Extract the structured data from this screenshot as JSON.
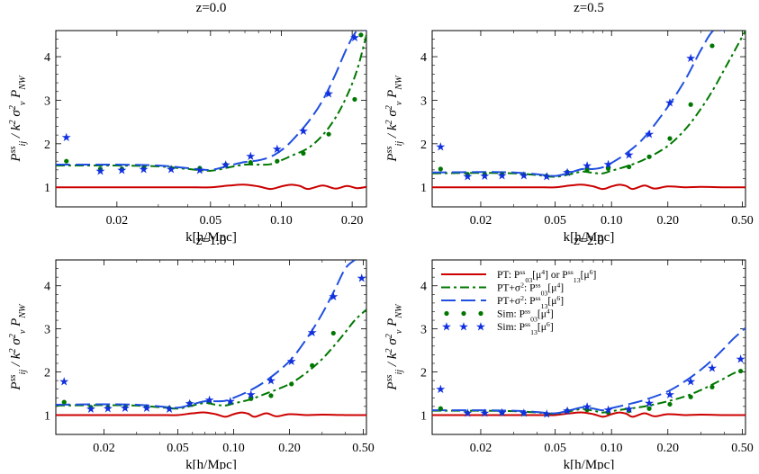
{
  "chart_data": [
    {
      "type": "line",
      "title": "z=0.0",
      "xlabel": "k[h/Mpc]",
      "ylabel": "P^ss_ij / k^2 σ^2_v P_NW",
      "xscale": "log",
      "xlim": [
        0.011,
        0.23
      ],
      "ylim": [
        0.55,
        4.6
      ],
      "xticks": [
        0.02,
        0.05,
        0.1,
        0.2
      ],
      "xtick_labels": [
        "0.02",
        "0.05",
        "0.10",
        "0.20"
      ],
      "yticks": [
        1,
        2,
        3,
        4
      ],
      "ytick_labels": [
        "1",
        "2",
        "3",
        "4"
      ],
      "series": [
        {
          "style": "pt",
          "x": [
            0.011,
            0.02,
            0.03,
            0.04,
            0.05,
            0.06,
            0.07,
            0.08,
            0.09,
            0.1,
            0.11,
            0.12,
            0.13,
            0.15,
            0.17,
            0.19,
            0.21,
            0.23
          ],
          "y": [
            1.0,
            1.0,
            1.0,
            1.0,
            1.0,
            1.04,
            1.06,
            1.02,
            0.96,
            1.02,
            1.06,
            1.03,
            0.96,
            1.04,
            0.97,
            1.03,
            0.98,
            1.01
          ]
        },
        {
          "style": "pt_sigma_03",
          "x": [
            0.011,
            0.02,
            0.03,
            0.04,
            0.05,
            0.06,
            0.07,
            0.08,
            0.09,
            0.1,
            0.11,
            0.13,
            0.15,
            0.17,
            0.19,
            0.21,
            0.23
          ],
          "y": [
            1.5,
            1.5,
            1.48,
            1.42,
            1.38,
            1.46,
            1.52,
            1.52,
            1.53,
            1.62,
            1.72,
            1.9,
            2.2,
            2.6,
            3.1,
            3.7,
            4.5
          ]
        },
        {
          "style": "pt_sigma_13",
          "x": [
            0.011,
            0.02,
            0.03,
            0.04,
            0.05,
            0.06,
            0.07,
            0.08,
            0.09,
            0.1,
            0.11,
            0.13,
            0.15,
            0.17,
            0.19,
            0.21,
            0.23
          ],
          "y": [
            1.52,
            1.52,
            1.5,
            1.44,
            1.4,
            1.5,
            1.58,
            1.62,
            1.7,
            1.85,
            2.05,
            2.5,
            3.0,
            3.6,
            4.2,
            4.6,
            4.6
          ]
        },
        {
          "style": "sim_03",
          "x": [
            0.0122,
            0.017,
            0.021,
            0.026,
            0.034,
            0.045,
            0.058,
            0.074,
            0.096,
            0.124,
            0.159,
            0.205,
            0.218
          ],
          "y": [
            1.6,
            1.42,
            1.42,
            1.45,
            1.44,
            1.44,
            1.52,
            1.57,
            1.6,
            1.78,
            2.22,
            3.02,
            4.5
          ]
        },
        {
          "style": "sim_13",
          "x": [
            0.0122,
            0.017,
            0.021,
            0.026,
            0.034,
            0.045,
            0.058,
            0.074,
            0.096,
            0.124,
            0.159,
            0.205
          ],
          "y": [
            2.15,
            1.38,
            1.4,
            1.42,
            1.42,
            1.4,
            1.52,
            1.72,
            1.88,
            2.3,
            3.15,
            4.45
          ]
        }
      ]
    },
    {
      "type": "line",
      "title": "z=0.5",
      "xlabel": "k[h/Mpc]",
      "ylabel": "P^ss_ij / k^2 σ^2_v P_NW",
      "xscale": "log",
      "xlim": [
        0.011,
        0.52
      ],
      "ylim": [
        0.55,
        4.6
      ],
      "xticks": [
        0.02,
        0.05,
        0.1,
        0.2,
        0.5
      ],
      "xtick_labels": [
        "0.02",
        "0.05",
        "0.10",
        "0.20",
        "0.50"
      ],
      "yticks": [
        1,
        2,
        3,
        4
      ],
      "ytick_labels": [
        "1",
        "2",
        "3",
        "4"
      ],
      "series": [
        {
          "style": "pt",
          "x": [
            0.011,
            0.02,
            0.03,
            0.04,
            0.05,
            0.06,
            0.07,
            0.08,
            0.09,
            0.1,
            0.11,
            0.12,
            0.13,
            0.15,
            0.17,
            0.2,
            0.25,
            0.3,
            0.4,
            0.52
          ],
          "y": [
            1.0,
            1.0,
            1.0,
            1.0,
            1.0,
            1.04,
            1.06,
            1.02,
            0.96,
            1.02,
            1.06,
            1.03,
            0.96,
            1.04,
            0.97,
            1.02,
            1.0,
            1.01,
            1.0,
            1.0
          ]
        },
        {
          "style": "pt_sigma_03",
          "x": [
            0.011,
            0.02,
            0.03,
            0.04,
            0.05,
            0.06,
            0.07,
            0.08,
            0.09,
            0.1,
            0.12,
            0.15,
            0.2,
            0.25,
            0.3,
            0.35,
            0.4,
            0.45,
            0.52
          ],
          "y": [
            1.32,
            1.33,
            1.32,
            1.28,
            1.24,
            1.3,
            1.36,
            1.33,
            1.32,
            1.38,
            1.48,
            1.64,
            1.95,
            2.35,
            2.8,
            3.25,
            3.7,
            4.1,
            4.6
          ]
        },
        {
          "style": "pt_sigma_13",
          "x": [
            0.011,
            0.02,
            0.03,
            0.04,
            0.05,
            0.06,
            0.07,
            0.08,
            0.09,
            0.1,
            0.12,
            0.15,
            0.2,
            0.25,
            0.3,
            0.35,
            0.4
          ],
          "y": [
            1.34,
            1.35,
            1.34,
            1.3,
            1.26,
            1.34,
            1.42,
            1.42,
            1.46,
            1.56,
            1.78,
            2.15,
            2.85,
            3.5,
            4.15,
            4.6,
            4.6
          ]
        },
        {
          "style": "sim_03",
          "x": [
            0.0122,
            0.017,
            0.021,
            0.026,
            0.034,
            0.045,
            0.058,
            0.074,
            0.096,
            0.124,
            0.159,
            0.205,
            0.265,
            0.345
          ],
          "y": [
            1.42,
            1.3,
            1.3,
            1.3,
            1.28,
            1.26,
            1.35,
            1.4,
            1.43,
            1.47,
            1.7,
            2.12,
            2.9,
            4.25
          ]
        },
        {
          "style": "sim_13",
          "x": [
            0.0122,
            0.017,
            0.021,
            0.026,
            0.034,
            0.045,
            0.058,
            0.074,
            0.096,
            0.124,
            0.159,
            0.205,
            0.265
          ],
          "y": [
            1.93,
            1.25,
            1.26,
            1.27,
            1.27,
            1.25,
            1.35,
            1.5,
            1.53,
            1.75,
            2.22,
            2.95,
            3.97
          ]
        }
      ]
    },
    {
      "type": "line",
      "title": "z=1.0",
      "xlabel": "k[h/Mpc]",
      "ylabel": "P^ss_ij / k^2 σ^2_v P_NW",
      "xscale": "log",
      "xlim": [
        0.011,
        0.52
      ],
      "ylim": [
        0.55,
        4.6
      ],
      "xticks": [
        0.02,
        0.05,
        0.1,
        0.2,
        0.5
      ],
      "xtick_labels": [
        "0.02",
        "0.05",
        "0.10",
        "0.20",
        "0.50"
      ],
      "yticks": [
        1,
        2,
        3,
        4
      ],
      "ytick_labels": [
        "1",
        "2",
        "3",
        "4"
      ],
      "series": [
        {
          "style": "pt",
          "x": [
            0.011,
            0.02,
            0.03,
            0.04,
            0.05,
            0.06,
            0.07,
            0.08,
            0.09,
            0.1,
            0.11,
            0.12,
            0.13,
            0.15,
            0.17,
            0.2,
            0.25,
            0.3,
            0.4,
            0.52
          ],
          "y": [
            1.0,
            1.0,
            1.0,
            1.0,
            1.0,
            1.04,
            1.06,
            1.02,
            0.96,
            1.02,
            1.06,
            1.03,
            0.96,
            1.04,
            0.97,
            1.02,
            1.0,
            1.01,
            1.0,
            1.0
          ]
        },
        {
          "style": "pt_sigma_03",
          "x": [
            0.011,
            0.02,
            0.03,
            0.04,
            0.05,
            0.06,
            0.07,
            0.08,
            0.09,
            0.1,
            0.12,
            0.15,
            0.2,
            0.25,
            0.3,
            0.35,
            0.4,
            0.45,
            0.52
          ],
          "y": [
            1.22,
            1.23,
            1.22,
            1.18,
            1.15,
            1.22,
            1.28,
            1.24,
            1.22,
            1.27,
            1.35,
            1.5,
            1.72,
            2.0,
            2.3,
            2.62,
            2.92,
            3.2,
            3.45
          ]
        },
        {
          "style": "pt_sigma_13",
          "x": [
            0.011,
            0.02,
            0.03,
            0.04,
            0.05,
            0.06,
            0.07,
            0.08,
            0.09,
            0.1,
            0.12,
            0.15,
            0.2,
            0.25,
            0.3,
            0.35,
            0.4,
            0.45
          ],
          "y": [
            1.24,
            1.25,
            1.24,
            1.2,
            1.17,
            1.25,
            1.32,
            1.32,
            1.33,
            1.4,
            1.55,
            1.8,
            2.25,
            2.8,
            3.35,
            3.9,
            4.4,
            4.6
          ]
        },
        {
          "style": "sim_03",
          "x": [
            0.0122,
            0.017,
            0.021,
            0.026,
            0.034,
            0.045,
            0.058,
            0.074,
            0.096,
            0.124,
            0.159,
            0.205,
            0.265,
            0.345
          ],
          "y": [
            1.3,
            1.18,
            1.18,
            1.18,
            1.17,
            1.16,
            1.27,
            1.3,
            1.28,
            1.38,
            1.45,
            1.72,
            2.15,
            2.9
          ]
        },
        {
          "style": "sim_13",
          "x": [
            0.0122,
            0.017,
            0.021,
            0.026,
            0.034,
            0.045,
            0.058,
            0.074,
            0.096,
            0.124,
            0.159,
            0.205,
            0.265,
            0.345,
            0.49
          ],
          "y": [
            1.78,
            1.15,
            1.16,
            1.17,
            1.17,
            1.15,
            1.27,
            1.35,
            1.32,
            1.48,
            1.8,
            2.25,
            2.92,
            3.75,
            4.18
          ]
        }
      ]
    },
    {
      "type": "line",
      "title": "z=2.0",
      "xlabel": "k[h/Mpc]",
      "ylabel": "P^ss_ij / k^2 σ^2_v P_NW",
      "xscale": "log",
      "xlim": [
        0.011,
        0.52
      ],
      "ylim": [
        0.55,
        4.6
      ],
      "xticks": [
        0.02,
        0.05,
        0.1,
        0.2,
        0.5
      ],
      "xtick_labels": [
        "0.02",
        "0.05",
        "0.10",
        "0.20",
        "0.50"
      ],
      "yticks": [
        1,
        2,
        3,
        4
      ],
      "ytick_labels": [
        "1",
        "2",
        "3",
        "4"
      ],
      "legend": {
        "placement": "top-right",
        "entries": [
          {
            "style": "pt",
            "label": "PT: P^ss_03[μ^4] or P^ss_13[μ^6]"
          },
          {
            "style": "pt_sigma_03",
            "label": "PT+σ^2: P^ss_03[μ^4]"
          },
          {
            "style": "pt_sigma_13",
            "label": "PT+σ^2: P^ss_13[μ^6]"
          },
          {
            "style": "sim_03",
            "label": "Sim: P^ss_03[μ^4]"
          },
          {
            "style": "sim_13",
            "label": "Sim: P^ss_13[μ^6]"
          }
        ]
      },
      "series": [
        {
          "style": "pt",
          "x": [
            0.011,
            0.02,
            0.03,
            0.04,
            0.05,
            0.06,
            0.07,
            0.08,
            0.09,
            0.1,
            0.11,
            0.12,
            0.13,
            0.15,
            0.17,
            0.2,
            0.25,
            0.3,
            0.4,
            0.52
          ],
          "y": [
            1.0,
            1.0,
            1.0,
            1.0,
            1.0,
            1.04,
            1.06,
            1.02,
            0.96,
            1.02,
            1.06,
            1.03,
            0.96,
            1.04,
            0.97,
            1.02,
            1.0,
            1.01,
            1.0,
            1.0
          ]
        },
        {
          "style": "pt_sigma_03",
          "x": [
            0.011,
            0.02,
            0.03,
            0.04,
            0.05,
            0.06,
            0.07,
            0.08,
            0.09,
            0.1,
            0.12,
            0.15,
            0.2,
            0.25,
            0.3,
            0.35,
            0.4,
            0.45,
            0.52
          ],
          "y": [
            1.1,
            1.1,
            1.09,
            1.06,
            1.03,
            1.09,
            1.14,
            1.1,
            1.06,
            1.09,
            1.14,
            1.2,
            1.32,
            1.44,
            1.58,
            1.72,
            1.85,
            1.97,
            2.08
          ]
        },
        {
          "style": "pt_sigma_13",
          "x": [
            0.011,
            0.02,
            0.03,
            0.04,
            0.05,
            0.06,
            0.07,
            0.08,
            0.09,
            0.1,
            0.12,
            0.15,
            0.2,
            0.25,
            0.3,
            0.35,
            0.4,
            0.45,
            0.52
          ],
          "y": [
            1.11,
            1.11,
            1.1,
            1.07,
            1.04,
            1.11,
            1.18,
            1.15,
            1.11,
            1.16,
            1.24,
            1.35,
            1.55,
            1.8,
            2.05,
            2.3,
            2.55,
            2.78,
            3.02
          ]
        },
        {
          "style": "sim_03",
          "x": [
            0.0122,
            0.017,
            0.021,
            0.026,
            0.034,
            0.045,
            0.058,
            0.074,
            0.096,
            0.124,
            0.159,
            0.205,
            0.265,
            0.345,
            0.49
          ],
          "y": [
            1.15,
            1.05,
            1.05,
            1.05,
            1.03,
            1.02,
            1.1,
            1.12,
            1.06,
            1.1,
            1.15,
            1.25,
            1.42,
            1.65,
            2.02
          ]
        },
        {
          "style": "sim_13",
          "x": [
            0.0122,
            0.017,
            0.021,
            0.026,
            0.034,
            0.045,
            0.058,
            0.074,
            0.096,
            0.124,
            0.159,
            0.205,
            0.265,
            0.345,
            0.49
          ],
          "y": [
            1.6,
            1.05,
            1.05,
            1.06,
            1.05,
            1.03,
            1.1,
            1.2,
            1.12,
            1.15,
            1.28,
            1.48,
            1.78,
            2.1,
            2.3
          ]
        }
      ]
    }
  ],
  "styles": {
    "pt": {
      "color": "#cc0000",
      "dash": "none"
    },
    "pt_sigma_03": {
      "color": "#007700",
      "dash": "10,4,3,4"
    },
    "pt_sigma_13": {
      "color": "#1f4fe0",
      "dash": "16,6"
    },
    "sim_03": {
      "color": "#007700",
      "marker": "dot"
    },
    "sim_13": {
      "color": "#1030e0",
      "marker": "star"
    }
  }
}
